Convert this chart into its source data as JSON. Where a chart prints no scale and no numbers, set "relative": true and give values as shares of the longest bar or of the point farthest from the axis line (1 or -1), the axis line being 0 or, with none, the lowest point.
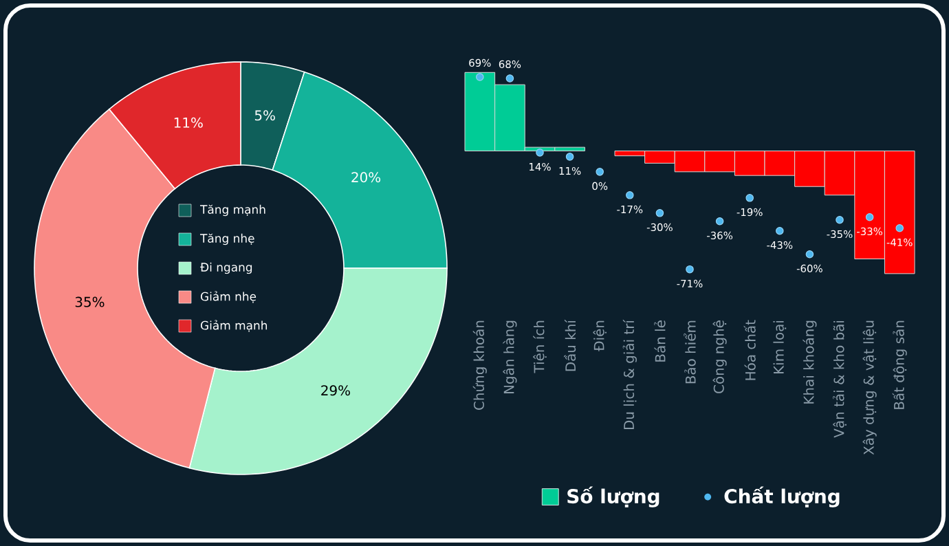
{
  "chart_data": [
    {
      "type": "donut",
      "categories": [
        "Tăng mạnh",
        "Tăng nhẹ",
        "Đi ngang",
        "Giảm nhẹ",
        "Giảm mạnh"
      ],
      "values": [
        5,
        20,
        29,
        35,
        11
      ],
      "colors": [
        "#0f5f5a",
        "#14b39a",
        "#a5f2cc",
        "#f98a86",
        "#e0272b"
      ],
      "value_labels": [
        "5%",
        "20%",
        "29%",
        "35%",
        "11%"
      ],
      "legend": "center"
    },
    {
      "type": "bar",
      "relative": true,
      "legend": "bottom",
      "categories": [
        "Chứng khoán",
        "Ngân hàng",
        "Tiện ích",
        "Dầu khí",
        "Điện",
        "Du lịch & giải trí",
        "Bán lẻ",
        "Bảo hiểm",
        "Công nghệ",
        "Hóa chất",
        "Kim loại",
        "Khai khoáng",
        "Vận tải & kho bãi",
        "Xây dựng & vật liệu",
        "Bất động sản"
      ],
      "series": [
        {
          "name": "Số lượng",
          "color": "#00cc96",
          "colors": [
            "#00cc96",
            "#00cc96",
            "#00cc96",
            "#00cc96",
            "#00cc96",
            "#ff0000",
            "#ff0000",
            "#ff0000",
            "#ff0000",
            "#ff0000",
            "#ff0000",
            "#ff0000",
            "#ff0000",
            "#ff0000",
            "#ff0000"
          ],
          "values": [
            0.64,
            0.54,
            0.03,
            0.03,
            0,
            -0.04,
            -0.1,
            -0.17,
            -0.17,
            -0.2,
            -0.2,
            -0.29,
            -0.36,
            -0.88,
            -1
          ]
        }
      ]
    },
    {
      "type": "scatter",
      "legend": "bottom",
      "marker": "circle",
      "categories": [
        null,
        null,
        null,
        null,
        null,
        null,
        null,
        null,
        null,
        null,
        null,
        null,
        null,
        null,
        null
      ],
      "series": [
        {
          "name": "Chất lượng",
          "color": "#4fb8f0",
          "values": [
            69,
            68,
            14,
            11,
            0,
            -17,
            -30,
            -71,
            -36,
            -19,
            -43,
            -60,
            -35,
            -33,
            -41
          ],
          "value_labels": [
            "69%",
            "68%",
            "14%",
            "11%",
            "0%",
            "-17%",
            "-30%",
            "-71%",
            "-36%",
            "-19%",
            "-43%",
            "-60%",
            "-35%",
            "-33%",
            "-41%"
          ]
        }
      ]
    }
  ]
}
